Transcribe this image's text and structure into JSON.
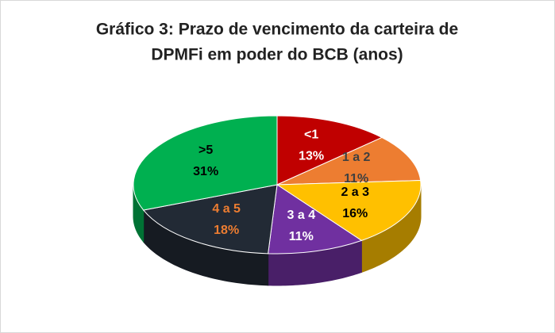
{
  "chart_data": {
    "type": "pie3d",
    "title": [
      "Gráfico 3: Prazo de vencimento da carteira de",
      "DPMFi em poder do BCB (anos)"
    ],
    "categories": [
      "<1",
      "1 a 2",
      "2 a 3",
      "3 a 4",
      "4 a 5",
      ">5"
    ],
    "values": [
      13,
      11,
      16,
      11,
      18,
      31
    ],
    "value_labels": [
      "13%",
      "11%",
      "16%",
      "11%",
      "18%",
      "31%"
    ],
    "colors": [
      "#c00000",
      "#ed7d31",
      "#ffc000",
      "#7030a0",
      "#222a35",
      "#00b050"
    ],
    "label_colors": [
      "#ffffff",
      "#404040",
      "#000000",
      "#ffffff",
      "#ed7d31",
      "#000000"
    ]
  }
}
